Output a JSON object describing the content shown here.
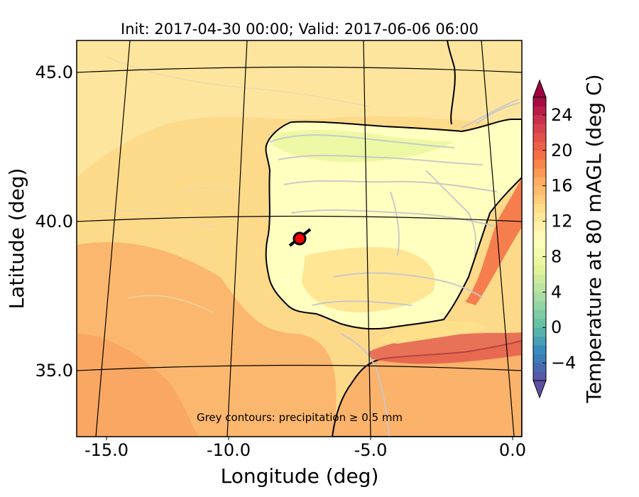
{
  "figure": {
    "title": "Init: 2017-04-30 00:00; Valid: 2017-06-06 06:00",
    "xlabel": "Longitude (deg)",
    "ylabel": "Latitude (deg)",
    "x_ticks": [
      "-15.0",
      "-10.0",
      "-5.0",
      "0.0"
    ],
    "y_ticks": [
      "45.0",
      "40.0",
      "35.0"
    ],
    "annotation": "Grey contours: precipitation ≥ 0.5 mm",
    "colorbar": {
      "label": "Temperature at 80 mAGL (deg C)",
      "ticks": [
        "24",
        "20",
        "16",
        "12",
        "8",
        "4",
        "0",
        "−4"
      ]
    }
  },
  "chart_data": {
    "type": "heatmap",
    "title": "Init: 2017-04-30 00:00; Valid: 2017-06-06 06:00",
    "xlabel": "Longitude (deg)",
    "ylabel": "Latitude (deg)",
    "xlim": [
      -16.0,
      0.2
    ],
    "ylim": [
      32.8,
      46.0
    ],
    "x_ticks": [
      -15.0,
      -10.0,
      -5.0,
      0.0
    ],
    "y_ticks": [
      45.0,
      40.0,
      35.0
    ],
    "colorbar": {
      "label": "Temperature at 80 mAGL (deg C)",
      "min": -6,
      "max": 26,
      "ticks": [
        -4,
        0,
        4,
        8,
        12,
        16,
        20,
        24
      ],
      "extend": "both",
      "colormap": "Spectral_r"
    },
    "marker": {
      "lon": -7.7,
      "lat": 39.4,
      "color": "#ff0000"
    },
    "grid": true
  },
  "colors": {
    "land_cool": "#ffffbf",
    "sea_warm": "#fdd98a",
    "sea_warmer": "#fbb26a",
    "hot": "#e2584a",
    "contour_grey": "#c8c8c8",
    "coast": "#000000"
  }
}
